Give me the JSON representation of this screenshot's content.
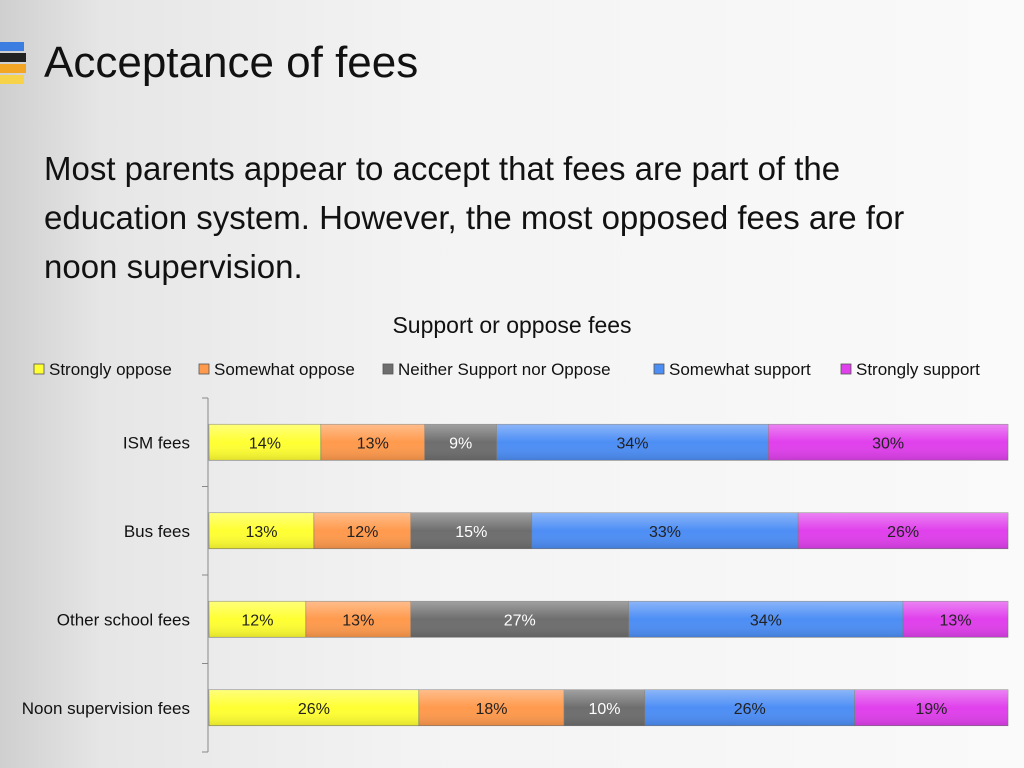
{
  "slide": {
    "title": "Acceptance of fees",
    "subtitle": "Most parents appear to accept that fees are part of the education system. However, the most opposed fees are for noon supervision."
  },
  "colors": {
    "strongly_oppose": "#ffff33",
    "somewhat_oppose": "#ff9a4d",
    "neither": "#6e6e6e",
    "somewhat_support": "#4d8ef5",
    "strongly_support": "#e040ec"
  },
  "chart_data": {
    "type": "bar",
    "orientation": "horizontal",
    "stacked": "percent",
    "title": "Support or oppose fees",
    "xlabel": "",
    "ylabel": "",
    "legend_position": "top",
    "grid": false,
    "categories": [
      "ISM fees",
      "Bus fees",
      "Other school fees",
      "Noon supervision fees"
    ],
    "series": [
      {
        "name": "Strongly oppose",
        "color": "#ffff33",
        "label_color": "#222222",
        "values": [
          14,
          13,
          12,
          26
        ]
      },
      {
        "name": "Somewhat oppose",
        "color": "#ff9a4d",
        "label_color": "#222222",
        "values": [
          13,
          12,
          13,
          18
        ]
      },
      {
        "name": "Neither Support nor Oppose",
        "color": "#6e6e6e",
        "label_color": "#ffffff",
        "values": [
          9,
          15,
          27,
          10
        ]
      },
      {
        "name": "Somewhat support",
        "color": "#4d8ef5",
        "label_color": "#222222",
        "values": [
          34,
          33,
          34,
          26
        ]
      },
      {
        "name": "Strongly support",
        "color": "#e040ec",
        "label_color": "#222222",
        "values": [
          30,
          26,
          13,
          19
        ]
      }
    ]
  }
}
